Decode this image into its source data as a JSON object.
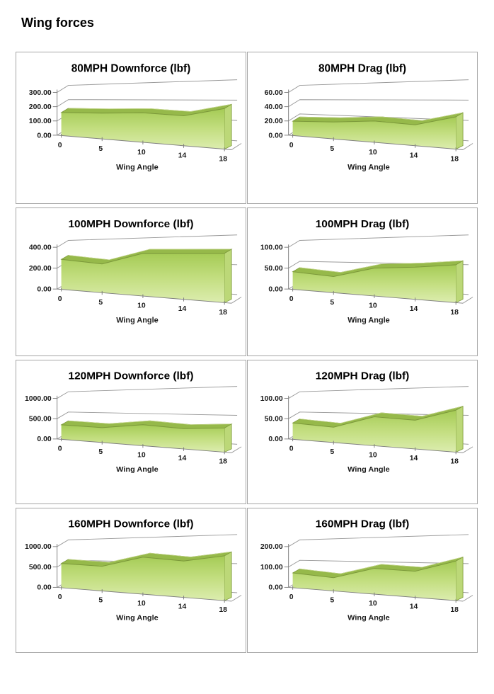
{
  "page": {
    "title": "Wing forces"
  },
  "colors": {
    "area_gradient_top": "#a5cb55",
    "area_gradient_mid": "#c3de80",
    "area_gradient_bottom": "#dcedaf",
    "area_top_band": "#96b94a",
    "area_side_face": "#bcd878",
    "area_outline": "#7c993b",
    "gridline": "#9b9b9b",
    "axis": "#808080",
    "panel_border": "#a6a6a6",
    "text": "#000000"
  },
  "chart_data": [
    {
      "type": "area",
      "title": "80MPH Downforce (lbf)",
      "x_axis": {
        "title": "Wing Angle",
        "tick_labels": [
          "0",
          "5",
          "10",
          "14",
          "18"
        ]
      },
      "y_axis": {
        "tick_labels": [
          "0.00",
          "100.00",
          "200.00",
          "300.00"
        ],
        "min": 0,
        "max": 300
      },
      "categories": [
        0,
        5,
        10,
        14,
        18
      ],
      "values": [
        160,
        168,
        180,
        172,
        220
      ],
      "grid": "on",
      "legend": "none"
    },
    {
      "type": "area",
      "title": "80MPH Drag (lbf)",
      "x_axis": {
        "title": "Wing Angle",
        "tick_labels": [
          "0",
          "5",
          "10",
          "14",
          "18"
        ]
      },
      "y_axis": {
        "tick_labels": [
          "0.00",
          "20.00",
          "40.00",
          "60.00"
        ],
        "min": 0,
        "max": 60
      },
      "categories": [
        0,
        5,
        10,
        14,
        18
      ],
      "values": [
        20,
        22,
        26,
        24,
        35
      ],
      "grid": "on",
      "legend": "none"
    },
    {
      "type": "area",
      "title": "100MPH Downforce (lbf)",
      "x_axis": {
        "title": "Wing Angle",
        "tick_labels": [
          "0",
          "5",
          "10",
          "14",
          "18"
        ]
      },
      "y_axis": {
        "tick_labels": [
          "0.00",
          "200.00",
          "400.00"
        ],
        "min": 0,
        "max": 400
      },
      "categories": [
        0,
        5,
        10,
        14,
        18
      ],
      "values": [
        285,
        255,
        355,
        360,
        365
      ],
      "grid": "on",
      "legend": "none"
    },
    {
      "type": "area",
      "title": "100MPH Drag (lbf)",
      "x_axis": {
        "title": "Wing Angle",
        "tick_labels": [
          "0",
          "5",
          "10",
          "14",
          "18"
        ]
      },
      "y_axis": {
        "tick_labels": [
          "0.00",
          "50.00",
          "100.00"
        ],
        "min": 0,
        "max": 100
      },
      "categories": [
        0,
        5,
        10,
        14,
        18
      ],
      "values": [
        42,
        36,
        58,
        63,
        70
      ],
      "grid": "on",
      "legend": "none"
    },
    {
      "type": "area",
      "title": "120MPH Downforce (lbf)",
      "x_axis": {
        "title": "Wing Angle",
        "tick_labels": [
          "0",
          "5",
          "10",
          "14",
          "18"
        ]
      },
      "y_axis": {
        "tick_labels": [
          "0.00",
          "500.00",
          "1000.00"
        ],
        "min": 0,
        "max": 1000
      },
      "categories": [
        0,
        5,
        10,
        14,
        18
      ],
      "values": [
        355,
        340,
        450,
        410,
        460
      ],
      "grid": "on",
      "legend": "none"
    },
    {
      "type": "area",
      "title": "120MPH Drag (lbf)",
      "x_axis": {
        "title": "Wing Angle",
        "tick_labels": [
          "0",
          "5",
          "10",
          "14",
          "18"
        ]
      },
      "y_axis": {
        "tick_labels": [
          "0.00",
          "50.00",
          "100.00"
        ],
        "min": 0,
        "max": 100
      },
      "categories": [
        0,
        5,
        10,
        14,
        18
      ],
      "values": [
        40,
        35,
        62,
        58,
        80
      ],
      "grid": "on",
      "legend": "none"
    },
    {
      "type": "area",
      "title": "160MPH Downforce (lbf)",
      "x_axis": {
        "title": "Wing Angle",
        "tick_labels": [
          "0",
          "5",
          "10",
          "14",
          "18"
        ]
      },
      "y_axis": {
        "tick_labels": [
          "0.00",
          "500.00",
          "1000.00"
        ],
        "min": 0,
        "max": 1000
      },
      "categories": [
        0,
        5,
        10,
        14,
        18
      ],
      "values": [
        590,
        560,
        790,
        730,
        850
      ],
      "grid": "on",
      "legend": "none"
    },
    {
      "type": "area",
      "title": "160MPH Drag (lbf)",
      "x_axis": {
        "title": "Wing Angle",
        "tick_labels": [
          "0",
          "5",
          "10",
          "14",
          "18"
        ]
      },
      "y_axis": {
        "tick_labels": [
          "0.00",
          "100.00",
          "200.00"
        ],
        "min": 0,
        "max": 200
      },
      "categories": [
        0,
        5,
        10,
        14,
        18
      ],
      "values": [
        72,
        60,
        110,
        105,
        150
      ],
      "grid": "on",
      "legend": "none"
    }
  ]
}
